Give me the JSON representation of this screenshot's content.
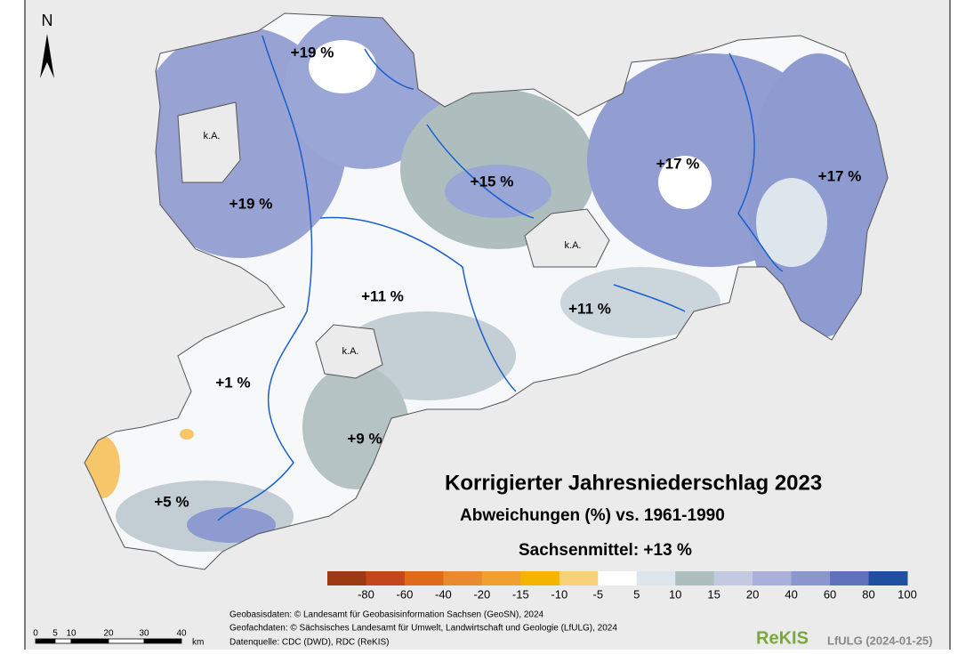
{
  "north": "N",
  "regions": [
    "+19 %",
    "k.A.",
    "+19 %",
    "+15 %",
    "+17 %",
    "+17 %",
    "k.A.",
    "+11 %",
    "+11 %",
    "k.A.",
    "+1 %",
    "+9 %",
    "+5 %"
  ],
  "title": "Korrigierter Jahresniederschlag 2023",
  "subtitle": "Abweichungen (%) vs. 1961-1990",
  "mean": "Sachsenmittel: +13 %",
  "legend": {
    "ticks": [
      -80,
      -60,
      -40,
      -20,
      -15,
      -10,
      -5,
      5,
      10,
      15,
      20,
      40,
      60,
      80,
      100
    ],
    "colors": [
      "#9c3a14",
      "#c4461c",
      "#de6a1a",
      "#ea8a2e",
      "#f0a032",
      "#f5b400",
      "#f8d07a",
      "#ffffff",
      "#dde6ec",
      "#aebebe",
      "#c4c9e2",
      "#a9b1da",
      "#8a96cd",
      "#5f72bb",
      "#1f4f9f"
    ]
  },
  "scale": {
    "ticks": [
      "0",
      "5",
      "10",
      "20",
      "30",
      "40"
    ],
    "unit": "km"
  },
  "sources": [
    "Geobasisdaten: © Landesamt für Geobasisinformation Sachsen (GeoSN), 2024",
    "Geofachdaten: © Sächsisches Landesamt für Umwelt, Landwirtschaft und Geologie (LfULG), 2024",
    "Datenquelle: CDC (DWD), RDC (ReKIS)"
  ],
  "logo": "ReKIS",
  "logo_note": "LfULG (2024-01-25)"
}
